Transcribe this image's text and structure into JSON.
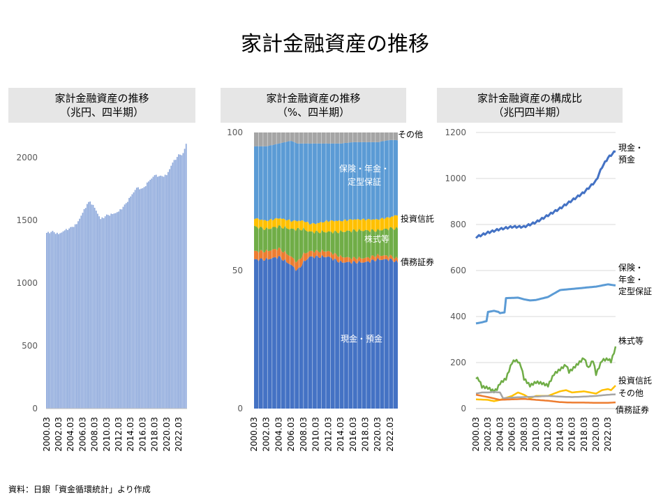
{
  "title": "家計金融資産の推移",
  "source": "資料：日銀「資金循環統計」より作成",
  "chart_data": [
    {
      "type": "bar",
      "title_line1": "家計金融資産の推移",
      "title_line2": "（兆円、四半期）",
      "ylim": [
        0,
        2200
      ],
      "yticks": [
        0,
        500,
        1000,
        1500,
        2000
      ],
      "xtick_labels": [
        "2000.03",
        "2002.03",
        "2004.03",
        "2006.03",
        "2008.03",
        "2010.03",
        "2012.03",
        "2014.03",
        "2016.03",
        "2018.03",
        "2020.03",
        "2022.03"
      ],
      "color": "#8faadc",
      "start": "2000.03",
      "anchors": [
        {
          "q": "2000.03",
          "v": 1400
        },
        {
          "q": "2001.03",
          "v": 1410
        },
        {
          "q": "2002.03",
          "v": 1390
        },
        {
          "q": "2003.03",
          "v": 1420
        },
        {
          "q": "2004.03",
          "v": 1440
        },
        {
          "q": "2005.03",
          "v": 1470
        },
        {
          "q": "2006.03",
          "v": 1560
        },
        {
          "q": "2006.12",
          "v": 1630
        },
        {
          "q": "2007.06",
          "v": 1650
        },
        {
          "q": "2008.03",
          "v": 1600
        },
        {
          "q": "2009.03",
          "v": 1510
        },
        {
          "q": "2010.03",
          "v": 1540
        },
        {
          "q": "2011.03",
          "v": 1550
        },
        {
          "q": "2012.03",
          "v": 1570
        },
        {
          "q": "2013.03",
          "v": 1620
        },
        {
          "q": "2014.03",
          "v": 1690
        },
        {
          "q": "2015.03",
          "v": 1760
        },
        {
          "q": "2016.03",
          "v": 1750
        },
        {
          "q": "2017.03",
          "v": 1810
        },
        {
          "q": "2018.03",
          "v": 1860
        },
        {
          "q": "2019.03",
          "v": 1850
        },
        {
          "q": "2020.03",
          "v": 1860
        },
        {
          "q": "2021.03",
          "v": 1960
        },
        {
          "q": "2022.03",
          "v": 2020
        },
        {
          "q": "2022.12",
          "v": 2030
        },
        {
          "q": "2023.06",
          "v": 2110
        }
      ]
    },
    {
      "type": "area",
      "stacked": true,
      "title_line1": "家計金融資産の推移",
      "title_line2": "（%、四半期）",
      "ylim": [
        0,
        100
      ],
      "yticks": [
        0,
        50,
        100
      ],
      "xtick_labels": [
        "2000.03",
        "2002.03",
        "2004.03",
        "2006.03",
        "2008.03",
        "2010.03",
        "2012.03",
        "2014.03",
        "2016.03",
        "2018.03",
        "2020.03",
        "2022.03"
      ],
      "x": [
        "2000.03",
        "2002.03",
        "2004.03",
        "2006.03",
        "2007.03",
        "2008.03",
        "2009.03",
        "2010.03",
        "2012.03",
        "2014.03",
        "2016.03",
        "2018.03",
        "2020.03",
        "2022.03",
        "2023.06"
      ],
      "series": [
        {
          "name": "現金・預金",
          "color": "#4472c4",
          "values": [
            54,
            54,
            55,
            52,
            50,
            53,
            55,
            55,
            55,
            53,
            53,
            53,
            54,
            54,
            53
          ]
        },
        {
          "name": "債務証券",
          "color": "#ed7d31",
          "values": [
            3,
            3,
            3,
            3,
            3,
            3,
            2,
            2,
            2,
            2,
            1.5,
            1.5,
            1.5,
            1.3,
            1.2
          ]
        },
        {
          "name": "株式等",
          "color": "#70ad47",
          "values": [
            9,
            8,
            8,
            10,
            12,
            9,
            7,
            7,
            7,
            9,
            10,
            10,
            9,
            10,
            11
          ]
        },
        {
          "name": "投資信託",
          "color": "#ffc000",
          "values": [
            3,
            3,
            3,
            3,
            3,
            3,
            3,
            3,
            4,
            4,
            4,
            4,
            4,
            4,
            5
          ]
        },
        {
          "name": "保険・年金・定型保証",
          "color": "#5b9bd5",
          "values": [
            26,
            27,
            27,
            29,
            28,
            28,
            29,
            29,
            28,
            28,
            28,
            28,
            28,
            28,
            27
          ]
        },
        {
          "name": "その他",
          "color": "#a5a5a5",
          "values": [
            5,
            5,
            4,
            3,
            4,
            4,
            4,
            4,
            4,
            4,
            3.5,
            3.5,
            3.5,
            2.7,
            2.8
          ]
        }
      ]
    },
    {
      "type": "line",
      "title_line1": "家計金融資産の構成比",
      "title_line2": "（兆円四半期）",
      "ylim": [
        0,
        1200
      ],
      "yticks": [
        0,
        200,
        400,
        600,
        800,
        1000,
        1200
      ],
      "xtick_labels": [
        "2000.03",
        "2002.03",
        "2004.03",
        "2006.03",
        "2008.03",
        "2010.03",
        "2012.03",
        "2014.03",
        "2016.03",
        "2018.03",
        "2020.03",
        "2022.03"
      ],
      "series": [
        {
          "name": "現金・預金",
          "label_lines": [
            "現金・",
            "預金"
          ],
          "color": "#4472c4",
          "points": [
            [
              "2000.03",
              745
            ],
            [
              "2002.03",
              765
            ],
            [
              "2004.03",
              780
            ],
            [
              "2006.03",
              790
            ],
            [
              "2008.03",
              790
            ],
            [
              "2010.03",
              810
            ],
            [
              "2012.03",
              840
            ],
            [
              "2014.03",
              870
            ],
            [
              "2016.03",
              905
            ],
            [
              "2018.03",
              940
            ],
            [
              "2020.03",
              990
            ],
            [
              "2021.03",
              1050
            ],
            [
              "2022.03",
              1090
            ],
            [
              "2023.06",
              1120
            ]
          ]
        },
        {
          "name": "保険・年金・定型保証",
          "label_lines": [
            "保険・",
            "年金・",
            "定型保証"
          ],
          "color": "#5b9bd5",
          "points": [
            [
              "2000.03",
              370
            ],
            [
              "2001.03",
              375
            ],
            [
              "2001.12",
              380
            ],
            [
              "2002.03",
              420
            ],
            [
              "2003.03",
              425
            ],
            [
              "2003.12",
              420
            ],
            [
              "2004.03",
              415
            ],
            [
              "2004.12",
              418
            ],
            [
              "2005.03",
              480
            ],
            [
              "2007.03",
              482
            ],
            [
              "2008.03",
              475
            ],
            [
              "2009.03",
              470
            ],
            [
              "2010.03",
              472
            ],
            [
              "2012.03",
              485
            ],
            [
              "2013.03",
              500
            ],
            [
              "2014.03",
              515
            ],
            [
              "2016.03",
              520
            ],
            [
              "2018.03",
              525
            ],
            [
              "2020.03",
              530
            ],
            [
              "2022.03",
              540
            ],
            [
              "2023.06",
              535
            ]
          ]
        },
        {
          "name": "株式等",
          "label_lines": [
            "株式等"
          ],
          "color": "#70ad47",
          "points": [
            [
              "2000.03",
              135
            ],
            [
              "2000.09",
              125
            ],
            [
              "2001.03",
              95
            ],
            [
              "2002.03",
              90
            ],
            [
              "2003.03",
              75
            ],
            [
              "2003.09",
              85
            ],
            [
              "2004.03",
              110
            ],
            [
              "2005.03",
              130
            ],
            [
              "2006.03",
              200
            ],
            [
              "2006.09",
              210
            ],
            [
              "2007.03",
              205
            ],
            [
              "2007.09",
              185
            ],
            [
              "2008.03",
              130
            ],
            [
              "2009.03",
              100
            ],
            [
              "2010.03",
              115
            ],
            [
              "2011.03",
              110
            ],
            [
              "2012.03",
              100
            ],
            [
              "2013.03",
              150
            ],
            [
              "2014.03",
              170
            ],
            [
              "2015.03",
              190
            ],
            [
              "2015.09",
              160
            ],
            [
              "2016.03",
              170
            ],
            [
              "2017.03",
              195
            ],
            [
              "2018.03",
              220
            ],
            [
              "2018.12",
              175
            ],
            [
              "2019.03",
              190
            ],
            [
              "2019.09",
              210
            ],
            [
              "2020.03",
              150
            ],
            [
              "2020.09",
              180
            ],
            [
              "2021.03",
              210
            ],
            [
              "2022.03",
              215
            ],
            [
              "2022.09",
              205
            ],
            [
              "2023.06",
              265
            ]
          ]
        },
        {
          "name": "投資信託",
          "label_lines": [
            "投資信託"
          ],
          "color": "#ffc000",
          "points": [
            [
              "2000.03",
              40
            ],
            [
              "2002.03",
              38
            ],
            [
              "2003.03",
              32
            ],
            [
              "2004.03",
              38
            ],
            [
              "2006.03",
              55
            ],
            [
              "2007.03",
              70
            ],
            [
              "2008.03",
              60
            ],
            [
              "2009.03",
              45
            ],
            [
              "2010.03",
              55
            ],
            [
              "2012.03",
              55
            ],
            [
              "2014.03",
              75
            ],
            [
              "2015.03",
              80
            ],
            [
              "2016.03",
              70
            ],
            [
              "2018.03",
              75
            ],
            [
              "2019.03",
              70
            ],
            [
              "2020.03",
              65
            ],
            [
              "2021.03",
              80
            ],
            [
              "2022.03",
              85
            ],
            [
              "2022.09",
              80
            ],
            [
              "2023.06",
              100
            ]
          ]
        },
        {
          "name": "その他",
          "label_lines": [
            "その他"
          ],
          "color": "#a5a5a5",
          "points": [
            [
              "2000.03",
              65
            ],
            [
              "2001.03",
              70
            ],
            [
              "2002.03",
              70
            ],
            [
              "2003.03",
              72
            ],
            [
              "2004.03",
              70
            ],
            [
              "2004.09",
              45
            ],
            [
              "2006.03",
              48
            ],
            [
              "2008.03",
              50
            ],
            [
              "2010.03",
              52
            ],
            [
              "2012.03",
              55
            ],
            [
              "2014.03",
              52
            ],
            [
              "2016.03",
              50
            ],
            [
              "2018.03",
              52
            ],
            [
              "2020.03",
              55
            ],
            [
              "2022.03",
              60
            ],
            [
              "2023.06",
              62
            ]
          ]
        },
        {
          "name": "債務証券",
          "label_lines": [
            "債務証券"
          ],
          "color": "#ed7d31",
          "points": [
            [
              "2000.03",
              60
            ],
            [
              "2001.03",
              55
            ],
            [
              "2002.03",
              50
            ],
            [
              "2004.03",
              38
            ],
            [
              "2006.03",
              40
            ],
            [
              "2008.03",
              42
            ],
            [
              "2010.03",
              38
            ],
            [
              "2012.03",
              34
            ],
            [
              "2014.03",
              28
            ],
            [
              "2016.03",
              26
            ],
            [
              "2018.03",
              26
            ],
            [
              "2020.03",
              25
            ],
            [
              "2022.03",
              25
            ],
            [
              "2023.06",
              27
            ]
          ]
        }
      ]
    }
  ]
}
